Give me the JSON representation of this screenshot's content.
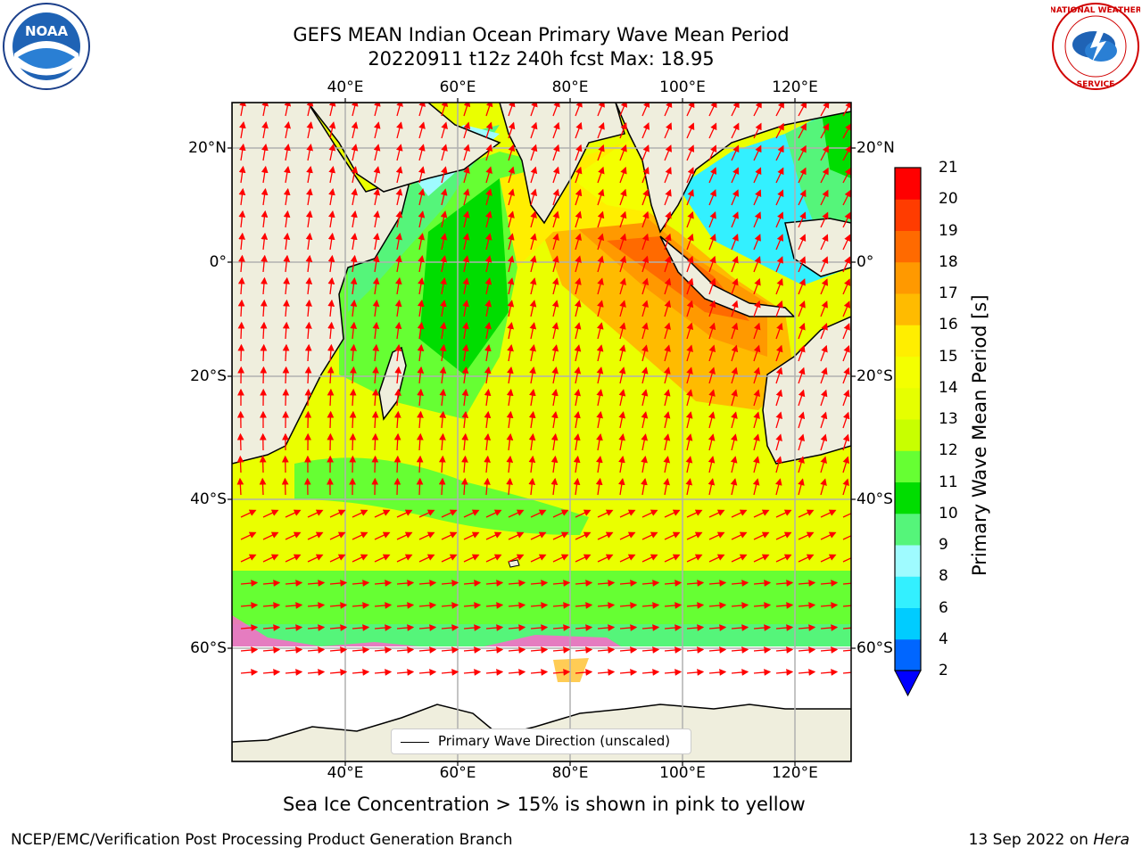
{
  "title": {
    "line1": "GEFS MEAN Indian Ocean Primary Wave Mean Period",
    "line2": "20220911 t12z 240h fcst   Max: 18.95"
  },
  "axes": {
    "lon_ticks": [
      "40°E",
      "60°E",
      "80°E",
      "100°E",
      "120°E"
    ],
    "lon_values": [
      40,
      60,
      80,
      100,
      120
    ],
    "lat_ticks": [
      "20°N",
      "0°",
      "20°S",
      "40°S",
      "60°S"
    ],
    "lat_values": [
      20,
      0,
      -20,
      -40,
      -60
    ],
    "lon_range": [
      20,
      130
    ],
    "lat_range": [
      27,
      -75
    ],
    "grid": true
  },
  "colorbar": {
    "title": "Primary Wave Mean Period [s]",
    "levels": [
      "2",
      "4",
      "6",
      "8",
      "9",
      "10",
      "11",
      "12",
      "13",
      "14",
      "15",
      "16",
      "17",
      "18",
      "19",
      "20",
      "21"
    ],
    "colors": [
      "#0066ff",
      "#00ccff",
      "#33f0ff",
      "#9ffbff",
      "#55f57a",
      "#00dd00",
      "#66ff33",
      "#c8ff00",
      "#e6ff00",
      "#f4ff00",
      "#ffee00",
      "#ffbb00",
      "#ff9900",
      "#ff6a00",
      "#ff3c00",
      "#ff0000"
    ],
    "extend_color": "#0000ff"
  },
  "legend": {
    "label": "Primary Wave Direction (unscaled)"
  },
  "subtitle": "Sea Ice Concentration > 15% is shown in pink to yellow",
  "footer": {
    "left": "NCEP/EMC/Verification Post Processing Product Generation Branch",
    "right_date": "13 Sep 2022 on ",
    "right_machine": "Hera"
  },
  "logos": {
    "left": "NOAA",
    "right": "NATIONAL WEATHER SERVICE"
  },
  "colors": {
    "land": "#efeedd",
    "arrow": "#ff0000",
    "grid": "#b0b0b0"
  }
}
